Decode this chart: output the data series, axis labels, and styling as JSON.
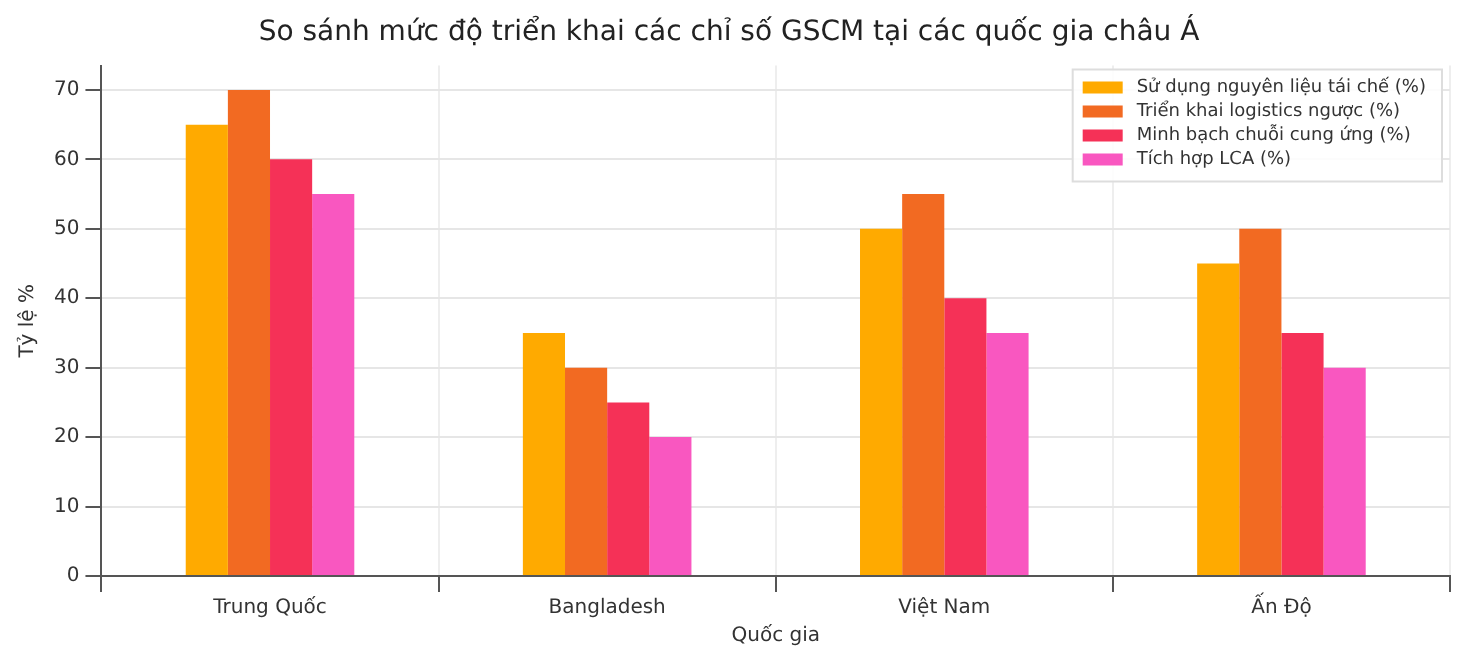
{
  "chart_data": {
    "type": "bar",
    "title": "So sánh mức độ triển khai các chỉ số GSCM tại các quốc gia châu Á",
    "xlabel": "Quốc gia",
    "ylabel": "Tỷ lệ %",
    "categories": [
      "Trung Quốc",
      "Bangladesh",
      "Việt Nam",
      "Ấn Độ"
    ],
    "series": [
      {
        "name": "Sử dụng nguyên liệu tái chế (%)",
        "color": "#ffaa00",
        "values": [
          65,
          35,
          50,
          45
        ]
      },
      {
        "name": "Triển khai logistics ngược (%)",
        "color": "#f26a22",
        "values": [
          70,
          30,
          55,
          50
        ]
      },
      {
        "name": "Minh bạch chuỗi cung ứng (%)",
        "color": "#f53157",
        "values": [
          60,
          25,
          40,
          35
        ]
      },
      {
        "name": "Tích hợp LCA (%)",
        "color": "#f957c0",
        "values": [
          55,
          20,
          35,
          30
        ]
      }
    ],
    "ylim": [
      0,
      73.5
    ],
    "yticks": [
      0,
      10,
      20,
      30,
      40,
      50,
      60,
      70
    ],
    "grid": true,
    "legend": "top right"
  }
}
